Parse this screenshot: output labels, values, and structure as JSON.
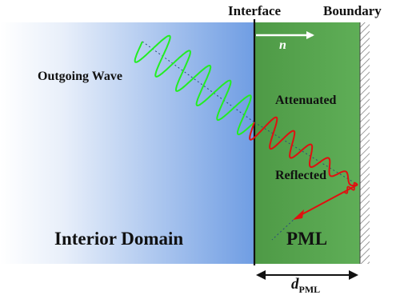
{
  "labels": {
    "interface": "Interface",
    "boundary": "Boundary",
    "normal": "n",
    "outgoing_wave": "Outgoing Wave",
    "attenuated": "Attenuated",
    "reflected": "Reflected",
    "interior_domain": "Interior Domain",
    "pml": "PML",
    "thickness_symbol": "d",
    "thickness_subscript": "PML"
  },
  "colors": {
    "interior_fill_light": "#ffffff",
    "interior_fill_dark": "#6f9de3",
    "pml_fill": "#5aa952",
    "pml_fill_dark": "#4e9a46",
    "incident_wave": "#22ee22",
    "attenuated_wave": "#e01010",
    "reflected_arrow": "#e01010",
    "interface_line": "#111111",
    "path_line": "#2a4a7a"
  }
}
